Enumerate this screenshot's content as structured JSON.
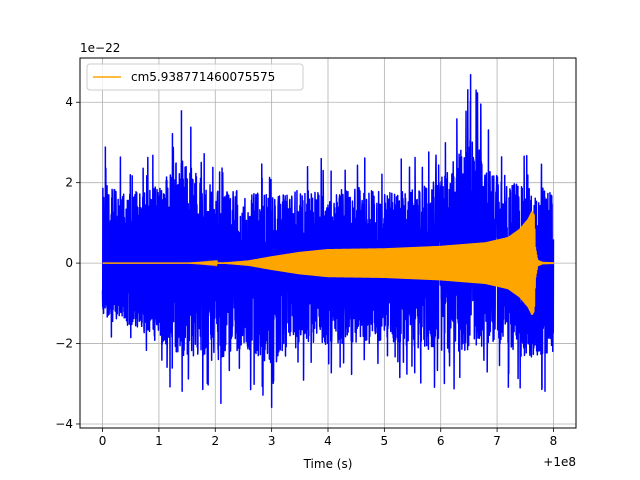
{
  "chart_data": {
    "type": "line",
    "title": "",
    "xlabel": "Time (s)",
    "ylabel": "",
    "x_offset_label": "+1e8",
    "y_scale_label": "1e−22",
    "xlim": [
      -0.4,
      8.4
    ],
    "ylim": [
      -4.1,
      5.1
    ],
    "x_ticks": [
      0,
      1,
      2,
      3,
      4,
      5,
      6,
      7,
      8
    ],
    "x_tick_labels": [
      "0",
      "1",
      "2",
      "3",
      "4",
      "5",
      "6",
      "7",
      "8"
    ],
    "y_ticks": [
      -4,
      -2,
      0,
      2,
      4
    ],
    "y_tick_labels": [
      "−4",
      "−2",
      "0",
      "2",
      "4"
    ],
    "grid": true,
    "legend_position": "top-left",
    "series": [
      {
        "name": "",
        "color": "#0000ff",
        "kind": "noisy-strain",
        "x": [
          0,
          0.5,
          1,
          1.4,
          2,
          2.5,
          3,
          3.5,
          4,
          4.5,
          5,
          5.5,
          6,
          6.53,
          7,
          7.5,
          8
        ],
        "upper": [
          2.9,
          2.5,
          2.8,
          3.8,
          2.6,
          2.6,
          2.4,
          2.6,
          2.6,
          2.7,
          2.5,
          2.6,
          3.0,
          4.7,
          3.3,
          2.7,
          2.7
        ],
        "lower": [
          -2.0,
          -2.3,
          -2.9,
          -3.3,
          -3.5,
          -3.0,
          -3.7,
          -2.9,
          -3.0,
          -2.9,
          -2.8,
          -3.0,
          -3.2,
          -3.1,
          -2.8,
          -3.4,
          -3.2
        ]
      },
      {
        "name": "cm5.938771460075575",
        "color": "#ffa500",
        "kind": "chirp-envelope",
        "x": [
          0,
          1.5,
          2.2,
          2.6,
          3.0,
          3.5,
          4.0,
          5.0,
          6.0,
          6.8,
          7.2,
          7.4,
          7.55,
          7.62,
          7.66,
          7.68,
          7.72,
          7.8,
          8.0
        ],
        "amplitude": [
          0,
          0,
          0.02,
          0.07,
          0.17,
          0.28,
          0.35,
          0.37,
          0.43,
          0.52,
          0.65,
          0.85,
          1.1,
          1.3,
          1.2,
          0.4,
          0.08,
          0.03,
          0.02
        ]
      }
    ]
  }
}
